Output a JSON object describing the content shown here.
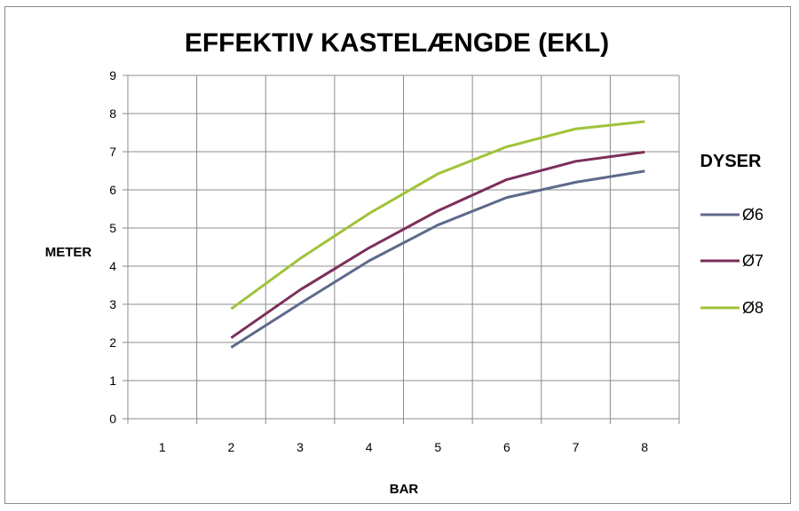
{
  "chart_data": {
    "type": "line",
    "title": "EFFEKTIV KASTELÆNGDE (EKL)",
    "xlabel": "BAR",
    "ylabel": "METER",
    "categories": [
      "1",
      "2",
      "3",
      "4",
      "5",
      "6",
      "7",
      "8"
    ],
    "ylim": [
      0,
      9
    ],
    "yticks": [
      "0",
      "1",
      "2",
      "3",
      "4",
      "5",
      "6",
      "7",
      "8",
      "9"
    ],
    "grid": true,
    "legend_title": "DYSER",
    "legend_position": "right",
    "series": [
      {
        "name": "Ø6",
        "color": "#5e6a8c",
        "values": [
          null,
          1.87,
          3.02,
          4.14,
          5.08,
          5.8,
          6.2,
          6.49
        ]
      },
      {
        "name": "Ø7",
        "color": "#7b2f5b",
        "values": [
          null,
          2.12,
          3.38,
          4.48,
          5.45,
          6.27,
          6.75,
          6.99
        ]
      },
      {
        "name": "Ø8",
        "color": "#9fc33a",
        "values": [
          null,
          2.88,
          4.2,
          5.38,
          6.42,
          7.13,
          7.6,
          7.79
        ]
      }
    ]
  }
}
